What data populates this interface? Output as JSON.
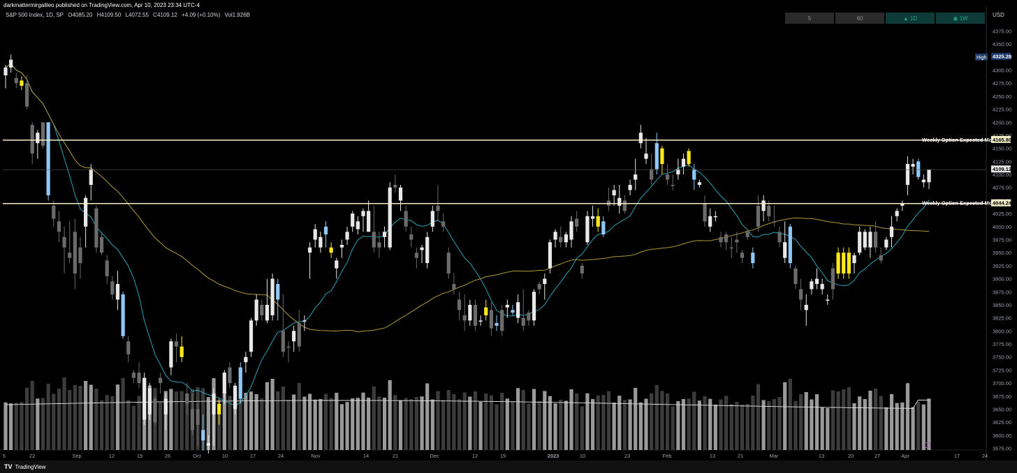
{
  "header": {
    "published": "darkmattermirgalileo published on TradingView.com, Apr 10, 2023 23:34 UTC-4"
  },
  "symbol": {
    "name": "S&P 500 Index, 1D, SP",
    "open": "O4085.20",
    "high": "H4109.50",
    "low": "L4072.55",
    "close": "C4109.12",
    "change": "+4.09 (+0.10%)",
    "volume": "Vol1.926B"
  },
  "intervals": [
    {
      "label": "5",
      "active": false
    },
    {
      "label": "60",
      "active": false
    },
    {
      "label": "▲ 1D",
      "active": true
    },
    {
      "label": "◉ 1W",
      "active": true
    }
  ],
  "axis": {
    "currency": "USD",
    "price_ticks": [
      "4375.00",
      "4350.00",
      "4325.00",
      "4300.00",
      "4275.00",
      "4250.00",
      "4225.00",
      "4200.00",
      "4175.00",
      "4150.00",
      "4125.00",
      "4100.00",
      "4075.00",
      "4050.00",
      "4025.00",
      "4000.00",
      "3975.00",
      "3950.00",
      "3925.00",
      "3900.00",
      "3875.00",
      "3850.00",
      "3825.00",
      "3800.00",
      "3775.00",
      "3750.00",
      "3725.00",
      "3700.00",
      "3675.00",
      "3650.00",
      "3625.00",
      "3600.00",
      "3575.00"
    ],
    "time_ticks": [
      "5",
      "22",
      "Sep",
      "12",
      "19",
      "26",
      "Oct",
      "10",
      "17",
      "24",
      "Nov",
      "14",
      "21",
      "Dec",
      "12",
      "19",
      "2023",
      "10",
      "23",
      "Feb",
      "13",
      "21",
      "Mar",
      "13",
      "20",
      "27",
      "Apr",
      "17",
      "24"
    ]
  },
  "labels": {
    "high_label": "High",
    "high_value": "4325.28",
    "upper_line_label": "Weekly Option Expected Move",
    "upper_line_value": "4165.80",
    "lower_line_label": "Weekly Option Expected Move",
    "lower_line_value": "4044.24",
    "last_price": "4109.12"
  },
  "colors": {
    "background": "#000000",
    "white_candle": "#e8e8e8",
    "gray_candle": "#6b6b6b",
    "blue_candle": "#90c8f5",
    "yellow_candle": "#ffe81a",
    "ma_fast": "#2aa2b8",
    "ma_slow": "#b09a3a",
    "expected_move_line": "#f3ecc8",
    "volume_ma": "#e0e0e0"
  },
  "brand": "TradingView",
  "chart_data": {
    "type": "candlestick",
    "series_fields": [
      "open",
      "high",
      "low",
      "close",
      "color"
    ],
    "candles": [
      [
        4290,
        4310,
        4265,
        4305,
        "w"
      ],
      [
        4305,
        4330,
        4295,
        4320,
        "w"
      ],
      [
        4285,
        4295,
        4265,
        4275,
        "g"
      ],
      [
        4270,
        4288,
        4262,
        4280,
        "y"
      ],
      [
        4275,
        4290,
        4225,
        4230,
        "g"
      ],
      [
        4195,
        4200,
        4120,
        4140,
        "g"
      ],
      [
        4160,
        4185,
        4130,
        4180,
        "w"
      ],
      [
        4200,
        4200,
        4150,
        4155,
        "g"
      ],
      [
        4200,
        4200,
        4050,
        4060,
        "b"
      ],
      [
        4040,
        4050,
        4000,
        4015,
        "g"
      ],
      [
        4010,
        4030,
        3970,
        3990,
        "g"
      ],
      [
        3960,
        4000,
        3910,
        3980,
        "g"
      ],
      [
        3940,
        4010,
        3930,
        3950,
        "g"
      ],
      [
        3990,
        4015,
        3880,
        3910,
        "g"
      ],
      [
        3930,
        3980,
        3900,
        3960,
        "g"
      ],
      [
        4000,
        4060,
        3960,
        4055,
        "w"
      ],
      [
        4080,
        4120,
        4050,
        4110,
        "w"
      ],
      [
        4035,
        4040,
        3950,
        3960,
        "g"
      ],
      [
        3980,
        3990,
        3945,
        3950,
        "g"
      ],
      [
        3935,
        3945,
        3890,
        3905,
        "g"
      ],
      [
        3895,
        3905,
        3860,
        3870,
        "g"
      ],
      [
        3860,
        3915,
        3840,
        3890,
        "w"
      ],
      [
        3870,
        3875,
        3785,
        3790,
        "b"
      ],
      [
        3780,
        3790,
        3740,
        3755,
        "g"
      ],
      [
        3710,
        3725,
        3700,
        3720,
        "g"
      ],
      [
        3700,
        3740,
        3690,
        3720,
        "g"
      ],
      [
        3710,
        3720,
        3620,
        3630,
        "w"
      ],
      [
        3690,
        3700,
        3630,
        3640,
        "w"
      ],
      [
        3670,
        3675,
        3620,
        3625,
        "g"
      ],
      [
        3700,
        3720,
        3680,
        3710,
        "g"
      ],
      [
        3640,
        3680,
        3610,
        3670,
        "w"
      ],
      [
        3730,
        3785,
        3715,
        3780,
        "w"
      ],
      [
        3780,
        3795,
        3740,
        3770,
        "g"
      ],
      [
        3770,
        3790,
        3740,
        3750,
        "y"
      ],
      [
        3680,
        3700,
        3640,
        3660,
        "g"
      ],
      [
        3650,
        3680,
        3600,
        3610,
        "g"
      ],
      [
        3620,
        3660,
        3580,
        3650,
        "g"
      ],
      [
        3610,
        3640,
        3570,
        3590,
        "b"
      ],
      [
        3580,
        3600,
        3565,
        3585,
        "w"
      ],
      [
        3640,
        3690,
        3580,
        3680,
        "w"
      ],
      [
        3660,
        3670,
        3620,
        3640,
        "y"
      ],
      [
        3680,
        3725,
        3660,
        3720,
        "w"
      ],
      [
        3700,
        3740,
        3690,
        3730,
        "g"
      ],
      [
        3650,
        3700,
        3640,
        3695,
        "w"
      ],
      [
        3670,
        3740,
        3660,
        3730,
        "b"
      ],
      [
        3750,
        3760,
        3720,
        3740,
        "w"
      ],
      [
        3760,
        3825,
        3750,
        3820,
        "w"
      ],
      [
        3820,
        3870,
        3810,
        3860,
        "w"
      ],
      [
        3850,
        3860,
        3820,
        3830,
        "g"
      ],
      [
        3820,
        3900,
        3815,
        3850,
        "w"
      ],
      [
        3900,
        3910,
        3820,
        3830,
        "w"
      ],
      [
        3860,
        3900,
        3820,
        3890,
        "b"
      ],
      [
        3800,
        3870,
        3750,
        3760,
        "g"
      ],
      [
        3770,
        3780,
        3740,
        3770,
        "g"
      ],
      [
        3780,
        3810,
        3760,
        3800,
        "w"
      ],
      [
        3815,
        3840,
        3760,
        3770,
        "g"
      ],
      [
        3820,
        3830,
        3800,
        3820,
        "w"
      ],
      [
        3950,
        3970,
        3900,
        3960,
        "w"
      ],
      [
        3975,
        4005,
        3960,
        3995,
        "w"
      ],
      [
        3980,
        3990,
        3950,
        3960,
        "w"
      ],
      [
        4000,
        4010,
        3960,
        3985,
        "b"
      ],
      [
        3960,
        3970,
        3940,
        3950,
        "y"
      ],
      [
        3920,
        3940,
        3900,
        3935,
        "w"
      ],
      [
        3960,
        3975,
        3940,
        3965,
        "w"
      ],
      [
        3990,
        4000,
        3965,
        3975,
        "w"
      ],
      [
        4000,
        4030,
        3990,
        4025,
        "w"
      ],
      [
        4010,
        4020,
        3985,
        3995,
        "w"
      ],
      [
        4020,
        4035,
        3990,
        4030,
        "w"
      ],
      [
        4030,
        4050,
        3990,
        3990,
        "w"
      ],
      [
        3990,
        4040,
        3950,
        3960,
        "g"
      ],
      [
        3960,
        3990,
        3940,
        3970,
        "g"
      ],
      [
        3980,
        4000,
        3960,
        3990,
        "w"
      ],
      [
        3960,
        4085,
        3955,
        4075,
        "w"
      ],
      [
        4080,
        4100,
        4065,
        4075,
        "g"
      ],
      [
        4075,
        4080,
        4030,
        4050,
        "w"
      ],
      [
        4030,
        4040,
        3990,
        4000,
        "g"
      ],
      [
        3985,
        4000,
        3960,
        3975,
        "g"
      ],
      [
        3940,
        3960,
        3920,
        3950,
        "g"
      ],
      [
        3955,
        3965,
        3930,
        3960,
        "w"
      ],
      [
        3930,
        3990,
        3920,
        3980,
        "w"
      ],
      [
        4000,
        4040,
        3990,
        4030,
        "w"
      ],
      [
        4040,
        4080,
        4010,
        4030,
        "g"
      ],
      [
        4010,
        4025,
        3990,
        4000,
        "g"
      ],
      [
        3950,
        3960,
        3900,
        3910,
        "g"
      ],
      [
        3890,
        3910,
        3870,
        3880,
        "g"
      ],
      [
        3860,
        3875,
        3820,
        3840,
        "g"
      ],
      [
        3830,
        3870,
        3800,
        3820,
        "g"
      ],
      [
        3820,
        3860,
        3810,
        3850,
        "w"
      ],
      [
        3850,
        3860,
        3800,
        3810,
        "g"
      ],
      [
        3820,
        3830,
        3810,
        3820,
        "w"
      ],
      [
        3830,
        3860,
        3820,
        3845,
        "y"
      ],
      [
        3840,
        3855,
        3790,
        3805,
        "g"
      ],
      [
        3810,
        3830,
        3800,
        3815,
        "b"
      ],
      [
        3800,
        3850,
        3790,
        3840,
        "g"
      ],
      [
        3850,
        3860,
        3825,
        3845,
        "w"
      ],
      [
        3840,
        3850,
        3830,
        3835,
        "b"
      ],
      [
        3825,
        3870,
        3815,
        3855,
        "w"
      ],
      [
        3810,
        3880,
        3800,
        3825,
        "g"
      ],
      [
        3820,
        3840,
        3810,
        3835,
        "g"
      ],
      [
        3820,
        3880,
        3810,
        3875,
        "w"
      ],
      [
        3890,
        3895,
        3870,
        3880,
        "g"
      ],
      [
        3890,
        3910,
        3860,
        3900,
        "w"
      ],
      [
        3920,
        3975,
        3910,
        3970,
        "w"
      ],
      [
        3975,
        3995,
        3960,
        3990,
        "w"
      ],
      [
        3980,
        4000,
        3960,
        3970,
        "g"
      ],
      [
        3970,
        3990,
        3960,
        3985,
        "w"
      ],
      [
        4010,
        4020,
        3960,
        3975,
        "w"
      ],
      [
        4000,
        4030,
        3990,
        4015,
        "g"
      ],
      [
        3925,
        3930,
        3900,
        3910,
        "g"
      ],
      [
        3970,
        4030,
        3965,
        4020,
        "w"
      ],
      [
        4020,
        4040,
        4000,
        4015,
        "w"
      ],
      [
        4020,
        4035,
        3990,
        4000,
        "y"
      ],
      [
        4010,
        4020,
        3980,
        3985,
        "b"
      ],
      [
        4050,
        4075,
        4030,
        4040,
        "g"
      ],
      [
        4060,
        4080,
        4040,
        4070,
        "w"
      ],
      [
        4040,
        4080,
        4025,
        4055,
        "w"
      ],
      [
        4050,
        4060,
        4025,
        4030,
        "g"
      ],
      [
        4070,
        4090,
        4060,
        4080,
        "w"
      ],
      [
        4100,
        4130,
        4070,
        4090,
        "w"
      ],
      [
        4160,
        4195,
        4150,
        4180,
        "w"
      ],
      [
        4140,
        4170,
        4120,
        4130,
        "w"
      ],
      [
        4090,
        4140,
        4080,
        4110,
        "g"
      ],
      [
        4160,
        4180,
        4100,
        4110,
        "b"
      ],
      [
        4120,
        4155,
        4100,
        4150,
        "y"
      ],
      [
        4100,
        4120,
        4080,
        4090,
        "g"
      ],
      [
        4080,
        4100,
        4070,
        4080,
        "g"
      ],
      [
        4110,
        4130,
        4090,
        4100,
        "w"
      ],
      [
        4130,
        4140,
        4100,
        4115,
        "w"
      ],
      [
        4145,
        4150,
        4115,
        4120,
        "y"
      ],
      [
        4110,
        4120,
        4070,
        4090,
        "b"
      ],
      [
        4085,
        4090,
        4075,
        4080,
        "w"
      ],
      [
        4045,
        4060,
        4000,
        4010,
        "g"
      ],
      [
        4020,
        4035,
        3990,
        4000,
        "w"
      ],
      [
        4020,
        4030,
        4010,
        4020,
        "w"
      ],
      [
        3980,
        3990,
        3960,
        3970,
        "g"
      ],
      [
        3970,
        3990,
        3955,
        3985,
        "g"
      ],
      [
        3960,
        3980,
        3940,
        3960,
        "g"
      ],
      [
        3970,
        3990,
        3950,
        3975,
        "g"
      ],
      [
        3940,
        3955,
        3930,
        3950,
        "g"
      ],
      [
        3980,
        3995,
        3975,
        3990,
        "g"
      ],
      [
        3930,
        3960,
        3920,
        3950,
        "b"
      ],
      [
        4040,
        4060,
        3990,
        4000,
        "g"
      ],
      [
        4030,
        4060,
        4010,
        4050,
        "w"
      ],
      [
        4040,
        4050,
        4010,
        4020,
        "g"
      ],
      [
        4010,
        4040,
        4000,
        4010,
        "g"
      ],
      [
        3990,
        4000,
        3960,
        3970,
        "g"
      ],
      [
        3970,
        4010,
        3930,
        3940,
        "w"
      ],
      [
        4000,
        4005,
        3920,
        3930,
        "b"
      ],
      [
        3920,
        3925,
        3880,
        3890,
        "g"
      ],
      [
        3880,
        3900,
        3840,
        3860,
        "g"
      ],
      [
        3850,
        3870,
        3810,
        3840,
        "w"
      ],
      [
        3880,
        3900,
        3870,
        3895,
        "w"
      ],
      [
        3900,
        3920,
        3880,
        3890,
        "w"
      ],
      [
        3880,
        3900,
        3870,
        3890,
        "w"
      ],
      [
        3860,
        3870,
        3850,
        3860,
        "w"
      ],
      [
        3880,
        3930,
        3860,
        3920,
        "g"
      ],
      [
        3950,
        3960,
        3900,
        3910,
        "y"
      ],
      [
        3950,
        3960,
        3900,
        3910,
        "y"
      ],
      [
        3950,
        3960,
        3900,
        3910,
        "y"
      ],
      [
        3930,
        3950,
        3910,
        3945,
        "w"
      ],
      [
        3950,
        4000,
        3945,
        3990,
        "w"
      ],
      [
        3990,
        3995,
        3955,
        3960,
        "w"
      ],
      [
        3960,
        4000,
        3940,
        3990,
        "w"
      ],
      [
        3990,
        4010,
        3950,
        3960,
        "g"
      ],
      [
        3945,
        3960,
        3930,
        3935,
        "g"
      ],
      [
        3960,
        3980,
        3955,
        3975,
        "w"
      ],
      [
        3980,
        4020,
        3960,
        4000,
        "w"
      ],
      [
        4020,
        4035,
        4010,
        4030,
        "w"
      ],
      [
        4040,
        4050,
        4030,
        4045,
        "w"
      ],
      [
        4080,
        4135,
        4060,
        4120,
        "w"
      ],
      [
        4120,
        4130,
        4100,
        4115,
        "w"
      ],
      [
        4125,
        4130,
        4090,
        4095,
        "b"
      ],
      [
        4090,
        4100,
        4075,
        4085,
        "w"
      ],
      [
        4085,
        4109,
        4072,
        4109,
        "w"
      ]
    ],
    "reference_lines": [
      {
        "label": "Weekly Option Expected Move",
        "value": 4165.8
      },
      {
        "label": "Weekly Option Expected Move",
        "value": 4044.24
      }
    ],
    "high_marker": 4325.28,
    "last_close": 4109.12,
    "y_range": [
      3565,
      4385
    ]
  }
}
